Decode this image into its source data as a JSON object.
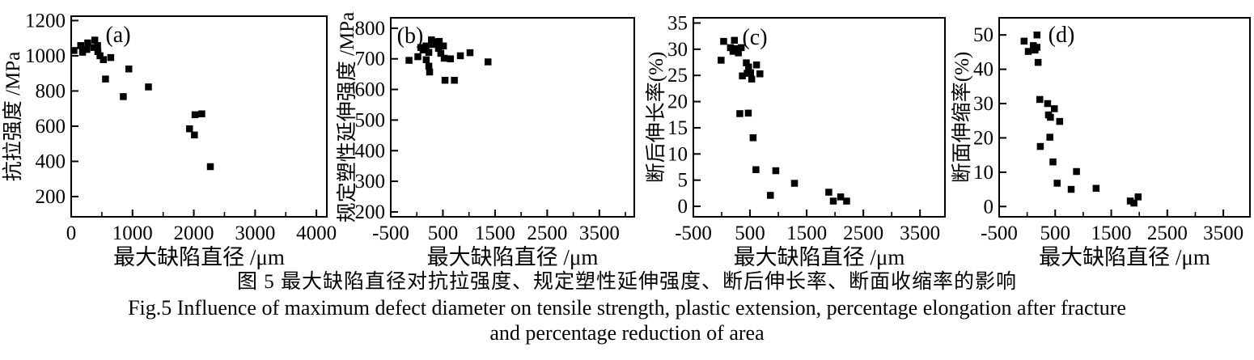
{
  "figure": {
    "caption_zh": "图 5  最大缺陷直径对抗拉强度、规定塑性延伸强度、断后伸长率、断面收缩率的影响",
    "caption_en_line1": "Fig.5  Influence of maximum defect diameter on tensile strength, plastic extension, percentage elongation after fracture",
    "caption_en_line2": "and percentage reduction of area"
  },
  "colors": {
    "foreground": "#000000",
    "background": "#ffffff"
  },
  "chart_data": [
    {
      "type": "scatter",
      "panel": "(a)",
      "xlabel": "最大缺陷直径 /μm",
      "ylabel": "抗拉强度 /MPa",
      "xlim": [
        0,
        4170
      ],
      "ylim": [
        85,
        1225
      ],
      "xticks_major": [
        0,
        1000,
        2000,
        3000,
        4000
      ],
      "xticks_minor": [
        500,
        1500,
        2500,
        3500
      ],
      "yticks": [
        200,
        400,
        600,
        800,
        1000,
        1200
      ],
      "points": [
        [
          45,
          1030
        ],
        [
          155,
          1058
        ],
        [
          185,
          1020
        ],
        [
          255,
          1036
        ],
        [
          270,
          1073
        ],
        [
          370,
          1047
        ],
        [
          385,
          1089
        ],
        [
          430,
          1058
        ],
        [
          435,
          1024
        ],
        [
          470,
          1000
        ],
        [
          525,
          978
        ],
        [
          645,
          990
        ],
        [
          560,
          868
        ],
        [
          850,
          768
        ],
        [
          940,
          925
        ],
        [
          1260,
          823
        ],
        [
          1930,
          585
        ],
        [
          2010,
          550
        ],
        [
          2020,
          665
        ],
        [
          2130,
          670
        ],
        [
          2270,
          370
        ]
      ]
    },
    {
      "type": "scatter",
      "panel": "(b)",
      "xlabel": "最大缺陷直径 /μm",
      "ylabel": "规定塑性延伸强度 /MPa",
      "xlim": [
        -500,
        4170
      ],
      "ylim": [
        184,
        834
      ],
      "xticks_major": [
        -500,
        500,
        1500,
        2500,
        3500
      ],
      "xticks_minor": [
        0,
        1000,
        2000,
        3000,
        4000
      ],
      "yticks": [
        200,
        300,
        400,
        500,
        600,
        700,
        800
      ],
      "points": [
        [
          -150,
          695
        ],
        [
          20,
          707
        ],
        [
          75,
          737
        ],
        [
          120,
          729
        ],
        [
          175,
          742
        ],
        [
          180,
          697
        ],
        [
          230,
          721
        ],
        [
          230,
          676
        ],
        [
          245,
          657
        ],
        [
          280,
          762
        ],
        [
          305,
          747
        ],
        [
          350,
          756
        ],
        [
          390,
          752
        ],
        [
          415,
          734
        ],
        [
          430,
          757
        ],
        [
          460,
          718
        ],
        [
          510,
          742
        ],
        [
          525,
          702
        ],
        [
          540,
          630
        ],
        [
          645,
          700
        ],
        [
          720,
          630
        ],
        [
          835,
          710
        ],
        [
          1020,
          720
        ],
        [
          1365,
          690
        ]
      ]
    },
    {
      "type": "scatter",
      "panel": "(c)",
      "xlabel": "最大缺陷直径 /μm",
      "ylabel": "断后伸长率(%)",
      "xlim": [
        -500,
        3940
      ],
      "ylim": [
        -2,
        36
      ],
      "xticks_major": [
        -500,
        500,
        1500,
        2500,
        3500
      ],
      "xticks_minor": [
        0,
        1000,
        2000,
        3000
      ],
      "yticks": [
        0,
        5,
        10,
        15,
        20,
        25,
        30,
        35
      ],
      "points": [
        [
          -10,
          27.9
        ],
        [
          35,
          31.5
        ],
        [
          155,
          30.3
        ],
        [
          200,
          29.6
        ],
        [
          225,
          31.7
        ],
        [
          275,
          30.1
        ],
        [
          295,
          29.3
        ],
        [
          320,
          17.7
        ],
        [
          345,
          30.3
        ],
        [
          365,
          24.9
        ],
        [
          435,
          27.4
        ],
        [
          450,
          25.4
        ],
        [
          470,
          17.8
        ],
        [
          475,
          26.6
        ],
        [
          510,
          25.5
        ],
        [
          530,
          24.3
        ],
        [
          555,
          13.1
        ],
        [
          605,
          7
        ],
        [
          615,
          27
        ],
        [
          675,
          25.3
        ],
        [
          860,
          2.1
        ],
        [
          955,
          6.8
        ],
        [
          1285,
          4.4
        ],
        [
          1890,
          2.7
        ],
        [
          1970,
          1
        ],
        [
          2100,
          1.8
        ],
        [
          2205,
          1
        ]
      ]
    },
    {
      "type": "scatter",
      "panel": "(d)",
      "xlabel": "最大缺陷直径 /μm",
      "ylabel": "断面伸缩率(%)",
      "xlim": [
        -500,
        3975
      ],
      "ylim": [
        -3,
        55
      ],
      "xticks_major": [
        -500,
        500,
        1500,
        2500,
        3500
      ],
      "xticks_minor": [
        0,
        1000,
        2000,
        3000
      ],
      "yticks": [
        0,
        10,
        20,
        30,
        40,
        50
      ],
      "points": [
        [
          -55,
          48.2
        ],
        [
          20,
          45.2
        ],
        [
          110,
          46.9
        ],
        [
          140,
          45.6
        ],
        [
          175,
          50
        ],
        [
          175,
          46.4
        ],
        [
          195,
          42
        ],
        [
          225,
          31.2
        ],
        [
          235,
          17.5
        ],
        [
          365,
          30
        ],
        [
          380,
          26.7
        ],
        [
          405,
          20.2
        ],
        [
          415,
          26
        ],
        [
          460,
          13
        ],
        [
          485,
          28.5
        ],
        [
          535,
          6.8
        ],
        [
          580,
          24.8
        ],
        [
          785,
          5
        ],
        [
          880,
          10.2
        ],
        [
          1230,
          5.3
        ],
        [
          1840,
          1.6
        ],
        [
          1905,
          1
        ],
        [
          1980,
          2.8
        ]
      ]
    }
  ]
}
